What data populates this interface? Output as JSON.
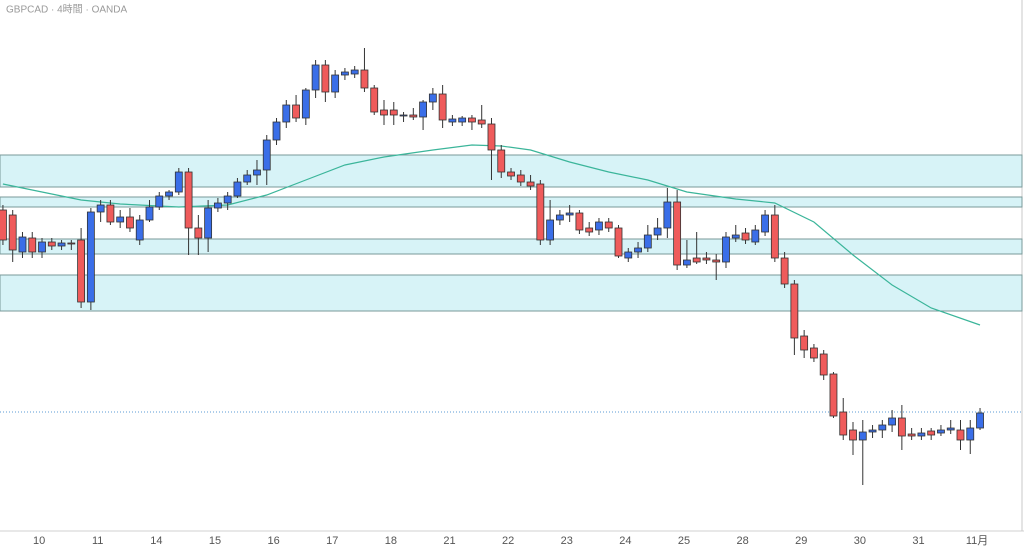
{
  "chart_data": {
    "type": "candlestick",
    "title": "GBPCAD · 4時間 · OANDA",
    "up_color": "#3a6ee8",
    "down_color": "#ef5b5b",
    "ma_color": "#3bb59a",
    "zone_color": "#d7f3f7",
    "price_line_color": "#5b9bd5",
    "ylim": [
      0,
      554
    ],
    "xlim": [
      -0.3,
      104.5
    ],
    "xticks": [
      {
        "value": 3.7,
        "label": "10"
      },
      {
        "value": 9.7,
        "label": "11"
      },
      {
        "value": 15.7,
        "label": "14"
      },
      {
        "value": 21.7,
        "label": "15"
      },
      {
        "value": 27.7,
        "label": "16"
      },
      {
        "value": 33.7,
        "label": "17"
      },
      {
        "value": 39.7,
        "label": "18"
      },
      {
        "value": 45.7,
        "label": "21"
      },
      {
        "value": 51.7,
        "label": "22"
      },
      {
        "value": 57.7,
        "label": "23"
      },
      {
        "value": 63.7,
        "label": "24"
      },
      {
        "value": 69.7,
        "label": "25"
      },
      {
        "value": 75.7,
        "label": "28"
      },
      {
        "value": 81.7,
        "label": "29"
      },
      {
        "value": 87.7,
        "label": "30"
      },
      {
        "value": 93.7,
        "label": "31"
      },
      {
        "value": 99.7,
        "label": "11月"
      }
    ],
    "open": [
      344,
      339,
      302,
      316,
      302,
      312,
      308,
      311,
      314,
      252,
      342,
      349,
      332,
      337,
      314,
      334,
      347,
      358,
      362,
      382,
      326,
      316,
      346,
      351,
      358,
      372,
      379,
      384,
      414,
      432,
      449,
      436,
      464,
      489,
      462,
      479,
      480,
      484,
      466,
      444,
      444,
      438,
      439,
      437,
      452,
      460,
      432,
      432,
      436,
      434,
      430,
      404,
      382,
      379,
      372,
      370,
      314,
      334,
      339,
      341,
      326,
      324,
      332,
      326,
      296,
      302,
      306,
      319,
      326,
      352,
      289,
      296,
      296,
      294,
      292,
      316,
      321,
      312,
      322,
      339,
      296,
      270,
      218,
      206,
      200,
      180,
      142,
      124,
      114,
      122,
      124,
      129,
      136,
      120,
      118,
      123,
      121,
      124,
      124,
      114,
      126
    ],
    "high": [
      349,
      344,
      322,
      322,
      316,
      316,
      314,
      314,
      326,
      346,
      354,
      354,
      344,
      346,
      339,
      354,
      362,
      364,
      386,
      386,
      339,
      354,
      356,
      362,
      376,
      384,
      394,
      419,
      436,
      454,
      459,
      466,
      494,
      494,
      484,
      486,
      488,
      506,
      469,
      454,
      452,
      442,
      446,
      454,
      466,
      469,
      439,
      438,
      439,
      449,
      436,
      409,
      386,
      384,
      379,
      374,
      354,
      344,
      349,
      344,
      332,
      336,
      336,
      329,
      306,
      312,
      329,
      336,
      366,
      364,
      314,
      322,
      302,
      300,
      322,
      329,
      326,
      329,
      344,
      349,
      302,
      274,
      224,
      210,
      204,
      182,
      156,
      132,
      134,
      129,
      134,
      144,
      149,
      126,
      126,
      126,
      129,
      134,
      134,
      134,
      146
    ],
    "low": [
      309,
      292,
      296,
      296,
      296,
      304,
      304,
      304,
      246,
      244,
      332,
      329,
      326,
      322,
      309,
      332,
      344,
      354,
      359,
      299,
      299,
      302,
      342,
      344,
      356,
      369,
      369,
      369,
      409,
      426,
      432,
      429,
      456,
      452,
      456,
      474,
      476,
      462,
      439,
      429,
      429,
      432,
      434,
      424,
      444,
      426,
      428,
      428,
      424,
      426,
      374,
      376,
      374,
      368,
      364,
      309,
      309,
      329,
      332,
      320,
      318,
      319,
      322,
      296,
      292,
      296,
      302,
      314,
      316,
      284,
      286,
      290,
      290,
      274,
      286,
      312,
      310,
      309,
      318,
      292,
      266,
      199,
      196,
      192,
      174,
      136,
      114,
      99,
      69,
      116,
      116,
      122,
      104,
      114,
      114,
      114,
      118,
      120,
      104,
      100,
      124
    ],
    "close": [
      314,
      304,
      317,
      302,
      312,
      308,
      311,
      310,
      252,
      342,
      349,
      332,
      337,
      326,
      334,
      347,
      358,
      362,
      382,
      326,
      316,
      346,
      351,
      358,
      372,
      379,
      384,
      414,
      432,
      449,
      436,
      464,
      489,
      462,
      479,
      482,
      484,
      466,
      442,
      439,
      439,
      439,
      437,
      452,
      460,
      434,
      435,
      436,
      432,
      430,
      404,
      382,
      378,
      372,
      368,
      314,
      334,
      339,
      341,
      324,
      322,
      332,
      326,
      298,
      302,
      306,
      319,
      326,
      352,
      289,
      294,
      292,
      294,
      292,
      317,
      319,
      314,
      324,
      339,
      296,
      270,
      216,
      204,
      196,
      179,
      138,
      119,
      114,
      122,
      124,
      129,
      136,
      118,
      118,
      121,
      119,
      124,
      126,
      114,
      126,
      141
    ],
    "ma": {
      "x": [
        0,
        4,
        8,
        12,
        18,
        23,
        27,
        31,
        35,
        39,
        44,
        48,
        51,
        54,
        58,
        62,
        66,
        70,
        75,
        79,
        83,
        87,
        91,
        95,
        100
      ],
      "values": [
        370,
        362,
        354,
        350,
        347,
        349,
        359,
        374,
        389,
        397,
        404,
        409,
        408,
        404,
        392,
        382,
        374,
        362,
        355,
        351,
        332,
        299,
        269,
        246,
        229
      ]
    },
    "zones": [
      [
        367,
        399
      ],
      [
        347,
        357
      ],
      [
        300,
        315
      ],
      [
        243,
        279
      ]
    ],
    "price_line": 142
  }
}
